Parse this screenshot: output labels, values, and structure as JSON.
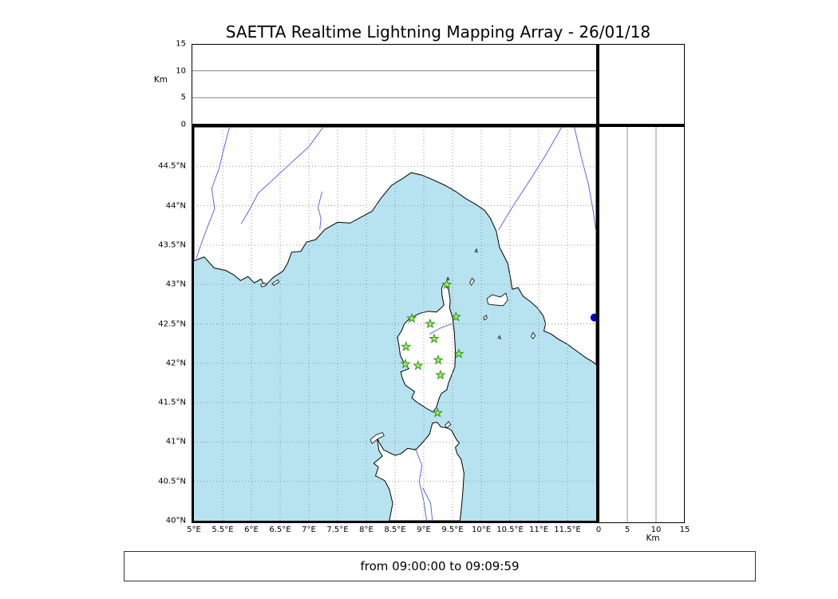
{
  "title": "SAETTA Realtime Lightning Mapping Array - 26/01/18",
  "time_box": {
    "text": "from 09:00:00 to 09:09:59"
  },
  "altitude_axes": {
    "unit_label": "Km",
    "ticks": [
      "0",
      "5",
      "10",
      "15"
    ],
    "max": 15,
    "gridlines": [
      5,
      10
    ]
  },
  "map": {
    "lon_min": 5.0,
    "lon_max": 12.0,
    "lat_min": 40.0,
    "lat_max": 45.0,
    "grid_step_deg": 0.5,
    "lon_tick_labels": [
      "5°E",
      "5.5°E",
      "6°E",
      "6.5°E",
      "7°E",
      "7.5°E",
      "8°E",
      "8.5°E",
      "9°E",
      "9.5°E",
      "10°E",
      "10.5°E",
      "11°E",
      "11.5°E"
    ],
    "lon_tick_values": [
      5,
      5.5,
      6,
      6.5,
      7,
      7.5,
      8,
      8.5,
      9,
      9.5,
      10,
      10.5,
      11,
      11.5
    ],
    "lat_tick_labels": [
      "44.5°N",
      "44°N",
      "43.5°N",
      "43°N",
      "42.5°N",
      "42°N",
      "41.5°N",
      "41°N",
      "40.5°N",
      "40°N"
    ],
    "lat_tick_values": [
      44.5,
      44,
      43.5,
      43,
      42.5,
      42,
      41.5,
      41,
      40.5,
      40
    ]
  },
  "stations": [
    [
      9.4,
      43.0
    ],
    [
      8.79,
      42.57
    ],
    [
      9.11,
      42.5
    ],
    [
      9.56,
      42.59
    ],
    [
      9.18,
      42.31
    ],
    [
      8.69,
      42.21
    ],
    [
      9.61,
      42.12
    ],
    [
      8.68,
      41.99
    ],
    [
      8.9,
      41.97
    ],
    [
      9.25,
      42.04
    ],
    [
      9.29,
      41.85
    ],
    [
      9.24,
      41.37
    ]
  ],
  "point_markers": [
    {
      "lon": 11.97,
      "lat": 42.58,
      "r": 5
    }
  ],
  "colors": {
    "sea": "#b6e3ef",
    "land": "#ffffff",
    "coastline": "#000000",
    "river": "#4c5bd4",
    "grid": "#8a8a8a",
    "panel_grid": "#777777",
    "station_fill": "#a8f042",
    "station_stroke": "#2f8f2f",
    "point_marker": "#0000cd"
  },
  "geo": {
    "land": {
      "mainland": [
        [
          5.0,
          43.3
        ],
        [
          5.18,
          43.35
        ],
        [
          5.35,
          43.21
        ],
        [
          5.55,
          43.18
        ],
        [
          5.7,
          43.12
        ],
        [
          5.81,
          43.05
        ],
        [
          5.94,
          43.1
        ],
        [
          6.05,
          43.02
        ],
        [
          6.17,
          43.07
        ],
        [
          6.23,
          42.98
        ],
        [
          6.38,
          43.09
        ],
        [
          6.55,
          43.17
        ],
        [
          6.63,
          43.27
        ],
        [
          6.7,
          43.41
        ],
        [
          6.86,
          43.42
        ],
        [
          6.96,
          43.54
        ],
        [
          7.12,
          43.57
        ],
        [
          7.28,
          43.7
        ],
        [
          7.5,
          43.79
        ],
        [
          7.72,
          43.78
        ],
        [
          7.92,
          43.86
        ],
        [
          8.1,
          43.93
        ],
        [
          8.26,
          44.1
        ],
        [
          8.44,
          44.26
        ],
        [
          8.62,
          44.34
        ],
        [
          8.78,
          44.42
        ],
        [
          8.96,
          44.39
        ],
        [
          9.16,
          44.33
        ],
        [
          9.37,
          44.26
        ],
        [
          9.56,
          44.18
        ],
        [
          9.73,
          44.09
        ],
        [
          9.9,
          44.02
        ],
        [
          10.06,
          43.94
        ],
        [
          10.16,
          43.84
        ],
        [
          10.26,
          43.68
        ],
        [
          10.32,
          43.47
        ],
        [
          10.46,
          43.27
        ],
        [
          10.51,
          43.08
        ],
        [
          10.54,
          42.94
        ],
        [
          10.64,
          42.96
        ],
        [
          10.73,
          42.85
        ],
        [
          10.86,
          42.78
        ],
        [
          10.98,
          42.7
        ],
        [
          11.08,
          42.6
        ],
        [
          11.12,
          42.5
        ],
        [
          11.09,
          42.41
        ],
        [
          11.22,
          42.37
        ],
        [
          11.33,
          42.31
        ],
        [
          11.5,
          42.24
        ],
        [
          11.67,
          42.15
        ],
        [
          11.82,
          42.07
        ],
        [
          11.96,
          42.01
        ],
        [
          12.0,
          41.98
        ],
        [
          12.0,
          45.0
        ],
        [
          5.0,
          45.0
        ]
      ],
      "corsica": [
        [
          9.345,
          43.01
        ],
        [
          9.43,
          42.94
        ],
        [
          9.46,
          42.8
        ],
        [
          9.45,
          42.7
        ],
        [
          9.5,
          42.58
        ],
        [
          9.53,
          42.4
        ],
        [
          9.55,
          42.15
        ],
        [
          9.54,
          41.95
        ],
        [
          9.43,
          41.75
        ],
        [
          9.4,
          41.66
        ],
        [
          9.31,
          41.62
        ],
        [
          9.27,
          41.56
        ],
        [
          9.22,
          41.44
        ],
        [
          9.16,
          41.38
        ],
        [
          9.04,
          41.43
        ],
        [
          8.89,
          41.5
        ],
        [
          8.79,
          41.56
        ],
        [
          8.84,
          41.64
        ],
        [
          8.68,
          41.72
        ],
        [
          8.63,
          41.8
        ],
        [
          8.6,
          41.89
        ],
        [
          8.74,
          41.93
        ],
        [
          8.66,
          42.0
        ],
        [
          8.59,
          42.1
        ],
        [
          8.57,
          42.22
        ],
        [
          8.54,
          42.33
        ],
        [
          8.62,
          42.42
        ],
        [
          8.66,
          42.5
        ],
        [
          8.76,
          42.57
        ],
        [
          8.92,
          42.63
        ],
        [
          9.08,
          42.66
        ],
        [
          9.22,
          42.65
        ],
        [
          9.3,
          42.7
        ],
        [
          9.35,
          42.74
        ],
        [
          9.32,
          42.85
        ],
        [
          9.31,
          42.95
        ]
      ],
      "sardinia": [
        [
          8.4,
          40.0
        ],
        [
          8.46,
          40.22
        ],
        [
          8.4,
          40.4
        ],
        [
          8.32,
          40.51
        ],
        [
          8.16,
          40.57
        ],
        [
          8.21,
          40.68
        ],
        [
          8.13,
          40.73
        ],
        [
          8.28,
          40.82
        ],
        [
          8.22,
          40.89
        ],
        [
          8.19,
          41.04
        ],
        [
          8.3,
          40.9
        ],
        [
          8.5,
          40.83
        ],
        [
          8.6,
          40.85
        ],
        [
          8.72,
          40.92
        ],
        [
          8.86,
          40.9
        ],
        [
          9.0,
          41.01
        ],
        [
          9.1,
          41.1
        ],
        [
          9.15,
          41.24
        ],
        [
          9.23,
          41.25
        ],
        [
          9.3,
          41.19
        ],
        [
          9.4,
          41.18
        ],
        [
          9.48,
          41.15
        ],
        [
          9.57,
          41.03
        ],
        [
          9.62,
          40.99
        ],
        [
          9.55,
          40.93
        ],
        [
          9.58,
          40.85
        ],
        [
          9.65,
          40.78
        ],
        [
          9.7,
          40.6
        ],
        [
          9.68,
          40.38
        ],
        [
          9.66,
          40.2
        ],
        [
          9.63,
          40.0
        ]
      ],
      "islands": [
        [
          [
            8.07,
            41.03
          ],
          [
            8.17,
            41.09
          ],
          [
            8.28,
            41.12
          ],
          [
            8.31,
            41.08
          ],
          [
            8.2,
            41.04
          ],
          [
            8.1,
            40.98
          ]
        ],
        [
          [
            9.37,
            41.21
          ],
          [
            9.43,
            41.26
          ],
          [
            9.47,
            41.22
          ],
          [
            9.4,
            41.18
          ]
        ],
        [
          [
            10.1,
            42.82
          ],
          [
            10.19,
            42.87
          ],
          [
            10.33,
            42.84
          ],
          [
            10.43,
            42.89
          ],
          [
            10.46,
            42.8
          ],
          [
            10.38,
            42.73
          ],
          [
            10.22,
            42.74
          ],
          [
            10.12,
            42.75
          ]
        ],
        [
          [
            9.8,
            43.02
          ],
          [
            9.84,
            43.08
          ],
          [
            9.88,
            43.05
          ],
          [
            9.83,
            42.99
          ]
        ],
        [
          [
            9.89,
            43.42
          ],
          [
            9.92,
            43.45
          ],
          [
            9.93,
            43.41
          ]
        ],
        [
          [
            9.4,
            43.06
          ],
          [
            9.42,
            43.09
          ],
          [
            9.44,
            43.06
          ]
        ],
        [
          [
            10.04,
            42.58
          ],
          [
            10.09,
            42.61
          ],
          [
            10.1,
            42.57
          ],
          [
            10.05,
            42.55
          ]
        ],
        [
          [
            10.29,
            42.32
          ],
          [
            10.32,
            42.35
          ],
          [
            10.34,
            42.31
          ]
        ],
        [
          [
            10.87,
            42.34
          ],
          [
            10.9,
            42.39
          ],
          [
            10.94,
            42.35
          ],
          [
            10.9,
            42.31
          ]
        ],
        [
          [
            6.16,
            43.0
          ],
          [
            6.24,
            43.02
          ],
          [
            6.26,
            42.99
          ],
          [
            6.18,
            42.97
          ]
        ],
        [
          [
            6.36,
            43.01
          ],
          [
            6.46,
            43.06
          ],
          [
            6.48,
            43.03
          ],
          [
            6.39,
            42.99
          ]
        ]
      ]
    },
    "rivers": [
      [
        [
          5.62,
          45.0
        ],
        [
          5.52,
          44.72
        ],
        [
          5.44,
          44.48
        ],
        [
          5.31,
          44.22
        ],
        [
          5.36,
          43.96
        ],
        [
          5.22,
          43.7
        ],
        [
          5.12,
          43.5
        ],
        [
          5.04,
          43.33
        ]
      ],
      [
        [
          7.25,
          45.0
        ],
        [
          7.0,
          44.75
        ],
        [
          6.7,
          44.55
        ],
        [
          6.42,
          44.36
        ],
        [
          6.12,
          44.16
        ],
        [
          5.96,
          43.94
        ],
        [
          5.82,
          43.77
        ]
      ],
      [
        [
          7.23,
          44.18
        ],
        [
          7.16,
          43.98
        ],
        [
          7.21,
          43.84
        ],
        [
          7.19,
          43.7
        ]
      ],
      [
        [
          11.4,
          45.0
        ],
        [
          11.12,
          44.64
        ],
        [
          10.86,
          44.34
        ],
        [
          10.6,
          44.05
        ],
        [
          10.43,
          43.85
        ],
        [
          10.3,
          43.69
        ]
      ],
      [
        [
          11.62,
          45.0
        ],
        [
          11.74,
          44.62
        ],
        [
          11.87,
          44.26
        ],
        [
          11.95,
          43.92
        ],
        [
          12.0,
          43.66
        ]
      ],
      [
        [
          9.1,
          42.37
        ],
        [
          9.3,
          42.45
        ],
        [
          9.45,
          42.49
        ],
        [
          9.53,
          42.51
        ]
      ],
      [
        [
          9.05,
          40.0
        ],
        [
          9.0,
          40.25
        ],
        [
          8.92,
          40.5
        ],
        [
          8.97,
          40.7
        ],
        [
          8.85,
          40.92
        ]
      ],
      [
        [
          8.98,
          40.42
        ],
        [
          9.12,
          40.22
        ],
        [
          9.15,
          40.0
        ]
      ]
    ]
  }
}
